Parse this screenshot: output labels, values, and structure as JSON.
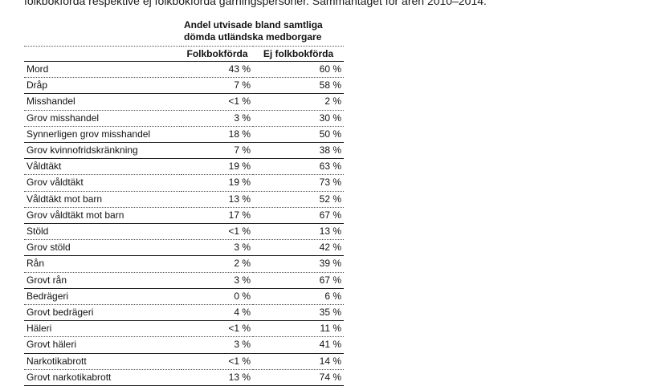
{
  "intro_text": "folkbokförda respektive ej folkbokförda gärningspersoner. Sammantaget för åren 2010–2014.",
  "table": {
    "header_line1": "Andel utvisade bland samtliga",
    "header_line2": "dömda utländska medborgare",
    "col_a": "Folkbokförda",
    "col_b": "Ej folkbokförda",
    "rows": [
      {
        "label": "Mord",
        "a": "43 %",
        "b": "60 %"
      },
      {
        "label": "Dråp",
        "a": "7 %",
        "b": "58 %"
      },
      {
        "label": "Misshandel",
        "a": "<1 %",
        "b": "2 %"
      },
      {
        "label": "Grov misshandel",
        "a": "3 %",
        "b": "30 %"
      },
      {
        "label": "Synnerligen grov misshandel",
        "a": "18 %",
        "b": "50 %"
      },
      {
        "label": "Grov kvinnofridskränkning",
        "a": "7 %",
        "b": "38 %"
      },
      {
        "label": "Våldtäkt",
        "a": "19 %",
        "b": "63 %"
      },
      {
        "label": "Grov våldtäkt",
        "a": "19 %",
        "b": "73 %"
      },
      {
        "label": "Våldtäkt mot barn",
        "a": "13 %",
        "b": "52 %"
      },
      {
        "label": "Grov våldtäkt mot barn",
        "a": "17 %",
        "b": "67 %"
      },
      {
        "label": "Stöld",
        "a": "<1 %",
        "b": "13 %"
      },
      {
        "label": "Grov stöld",
        "a": "3 %",
        "b": "42 %"
      },
      {
        "label": "Rån",
        "a": "2 %",
        "b": "39 %"
      },
      {
        "label": "Grovt rån",
        "a": "3 %",
        "b": "67 %"
      },
      {
        "label": "Bedrägeri",
        "a": "0 %",
        "b": "6 %"
      },
      {
        "label": "Grovt bedrägeri",
        "a": "4 %",
        "b": "35 %"
      },
      {
        "label": "Häleri",
        "a": "<1 %",
        "b": "11 %"
      },
      {
        "label": "Grovt häleri",
        "a": "3 %",
        "b": "41 %"
      },
      {
        "label": "Narkotikabrott",
        "a": "<1 %",
        "b": "14 %"
      },
      {
        "label": "Grovt narkotikabrott",
        "a": "13 %",
        "b": "74 %"
      }
    ]
  }
}
